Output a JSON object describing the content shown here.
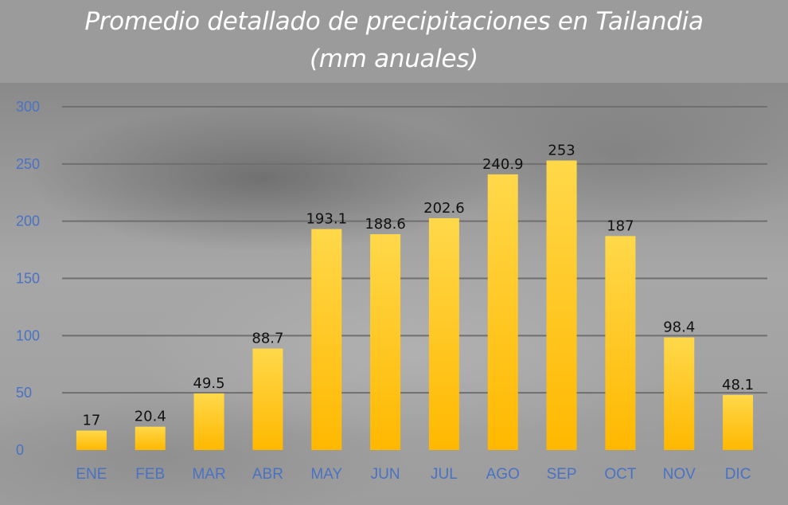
{
  "chart_data": {
    "type": "bar",
    "title_lines": [
      "Promedio detallado de precipitaciones en Tailandia",
      "(mm anuales)"
    ],
    "categories": [
      "ENE",
      "FEB",
      "MAR",
      "ABR",
      "MAY",
      "JUN",
      "JUL",
      "AGO",
      "SEP",
      "OCT",
      "NOV",
      "DIC"
    ],
    "values": [
      17,
      20.4,
      49.5,
      88.7,
      193.1,
      188.6,
      202.6,
      240.9,
      253,
      187,
      98.4,
      48.1
    ],
    "data_labels": [
      "17",
      "20.4",
      "49.5",
      "88.7",
      "193.1",
      "188.6",
      "202.6",
      "240.9",
      "253",
      "187",
      "98.4",
      "48.1"
    ],
    "yticks": [
      "0",
      "50",
      "100",
      "150",
      "200",
      "250",
      "300"
    ],
    "ylim": [
      0,
      300
    ],
    "xlabel": "",
    "ylabel": "",
    "grid": true,
    "legend": "none"
  },
  "colors": {
    "bar_top": "#ffd84a",
    "bar_bottom": "#ffb800",
    "tick_text": "#4a72c4",
    "title_text": "#ffffff"
  }
}
